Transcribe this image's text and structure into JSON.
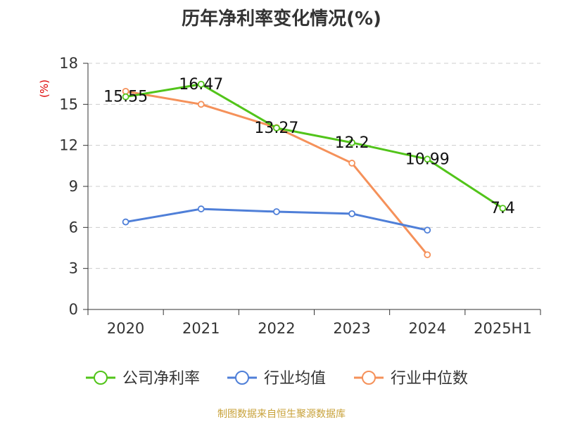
{
  "chart_data": {
    "type": "line",
    "title": "历年净利率变化情况(%)",
    "ylabel": "(%)",
    "categories": [
      "2020",
      "2021",
      "2022",
      "2023",
      "2024",
      "2025H1"
    ],
    "ylim": [
      0,
      18
    ],
    "yticks": [
      "0",
      "3",
      "6",
      "9",
      "12",
      "15",
      "18"
    ],
    "grid": true,
    "legend_position": "bottom",
    "series": [
      {
        "name": "公司净利率",
        "color": "#52c41a",
        "values": [
          15.55,
          16.47,
          13.27,
          12.2,
          10.99,
          7.4
        ],
        "data_labels": [
          "15.55",
          "16.47",
          "13.27",
          "12.2",
          "10.99",
          "7.4"
        ]
      },
      {
        "name": "行业均值",
        "color": "#4f7fd8",
        "values": [
          6.4,
          7.35,
          7.15,
          7.0,
          5.8,
          null
        ],
        "data_labels": []
      },
      {
        "name": "行业中位数",
        "color": "#f5915a",
        "values": [
          15.95,
          15.0,
          13.3,
          10.7,
          4.0,
          null
        ],
        "data_labels": []
      }
    ]
  },
  "footer": {
    "source": "制图数据来自恒生聚源数据库"
  },
  "colors": {
    "grid": "#cccccc",
    "axis": "#333333",
    "ylabel": "#dd0000",
    "source": "#c8a23a"
  }
}
